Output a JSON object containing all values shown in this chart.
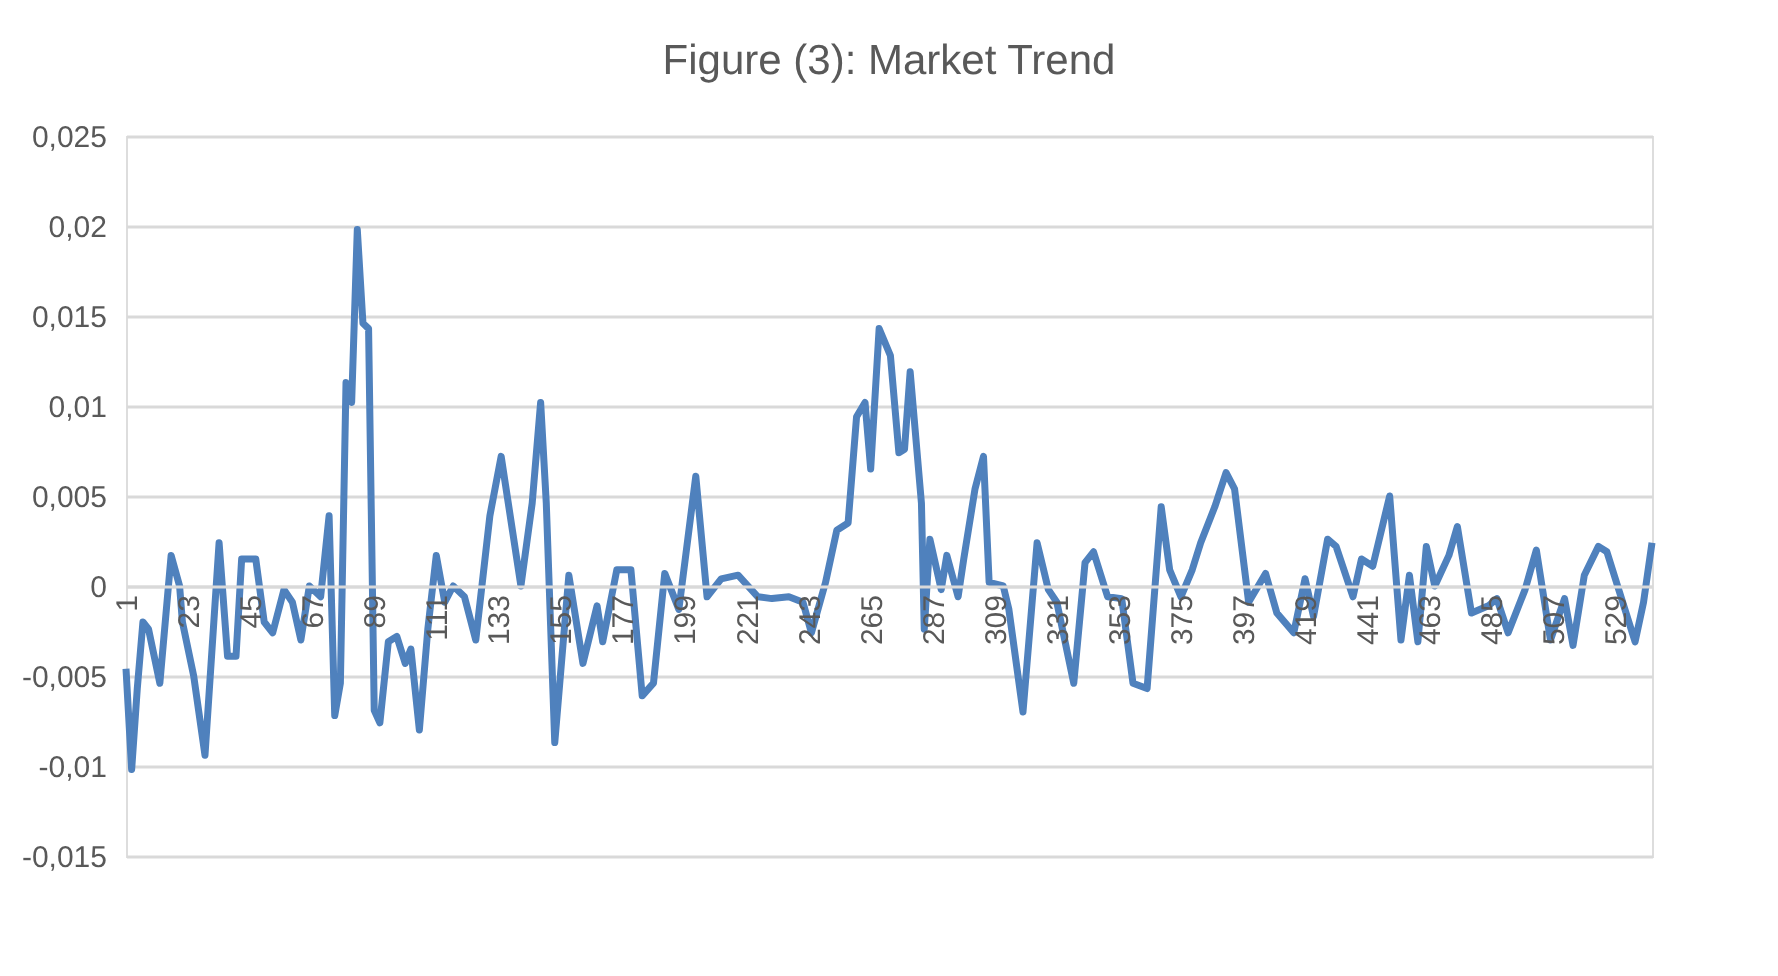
{
  "chart_data": {
    "type": "line",
    "title": "Figure (3): Market Trend",
    "xlim": [
      1,
      542
    ],
    "xticks": [
      1,
      23,
      45,
      67,
      89,
      111,
      133,
      155,
      177,
      199,
      221,
      243,
      265,
      287,
      309,
      331,
      353,
      375,
      397,
      419,
      441,
      463,
      485,
      507,
      529
    ],
    "ylim": [
      -0.015,
      0.025
    ],
    "yticks": [
      {
        "value": -0.015,
        "label": "-0,015"
      },
      {
        "value": -0.01,
        "label": "-0,01"
      },
      {
        "value": -0.005,
        "label": "-0,005"
      },
      0,
      {
        "value": 0.005,
        "label": "0,005"
      },
      {
        "value": 0.01,
        "label": "0,01"
      },
      {
        "value": 0.015,
        "label": "0,015"
      },
      {
        "value": 0.02,
        "label": "0,02"
      },
      {
        "value": 0.025,
        "label": "0,025"
      }
    ],
    "grid": "y",
    "legend": false,
    "marker": "none",
    "line_style": "solid",
    "series": [
      {
        "color": "#4f81bd",
        "x": [
          1,
          3,
          5,
          7,
          9,
          13,
          17,
          20,
          21,
          25,
          29,
          34,
          37,
          40,
          42,
          47,
          50,
          53,
          57,
          60,
          63,
          66,
          70,
          73,
          75,
          77,
          79,
          81,
          83,
          85,
          87,
          89,
          91,
          94,
          97,
          100,
          102,
          105,
          108,
          111,
          114,
          117,
          121,
          125,
          130,
          134,
          141,
          145,
          148,
          150,
          153,
          158,
          163,
          168,
          170,
          175,
          180,
          184,
          188,
          192,
          197,
          203,
          207,
          212,
          218,
          225,
          230,
          236,
          241,
          244,
          249,
          253,
          257,
          260,
          263,
          265,
          268,
          272,
          275,
          277,
          279,
          283,
          284,
          286,
          290,
          292,
          296,
          298,
          302,
          305,
          307,
          312,
          314,
          319,
          324,
          328,
          331,
          337,
          341,
          344,
          349,
          354,
          358,
          363,
          368,
          371,
          375,
          379,
          382,
          387,
          391,
          394,
          399,
          405,
          409,
          415,
          419,
          422,
          427,
          430,
          436,
          439,
          443,
          449,
          453,
          456,
          459,
          462,
          465,
          470,
          473,
          478,
          484,
          487,
          491,
          497,
          501,
          506,
          511,
          514,
          518,
          523,
          526,
          531,
          536,
          539,
          542
        ],
        "values": [
          -0.0046,
          -0.0102,
          -0.0057,
          -0.002,
          -0.0024,
          -0.0054,
          0.0017,
          0,
          -0.002,
          -0.005,
          -0.0094,
          0.0024,
          -0.0039,
          -0.0039,
          0.0015,
          0.0015,
          -0.002,
          -0.0026,
          -0.0002,
          -0.0009,
          -0.003,
          0,
          -0.0006,
          0.0039,
          -0.0072,
          -0.0054,
          0.0113,
          0.0102,
          0.0198,
          0.0146,
          0.0143,
          -0.0069,
          -0.0076,
          -0.0031,
          -0.0028,
          -0.0043,
          -0.0035,
          -0.008,
          -0.0024,
          0.0017,
          -0.0009,
          0,
          -0.0006,
          -0.003,
          0.0039,
          0.0072,
          0,
          0.0046,
          0.0102,
          0.0046,
          -0.0087,
          0.0006,
          -0.0043,
          -0.0011,
          -0.0031,
          0.0009,
          0.0009,
          -0.0061,
          -0.0054,
          0.0007,
          -0.0013,
          0.0061,
          -0.0006,
          0.0004,
          0.0006,
          -0.0006,
          -0.0007,
          -0.0006,
          -0.0009,
          -0.0026,
          0.0002,
          0.0031,
          0.0035,
          0.0094,
          0.0102,
          0.0065,
          0.0143,
          0.0128,
          0.0074,
          0.0076,
          0.0119,
          0.0046,
          -0.0024,
          0.0026,
          -0.0002,
          0.0017,
          -0.0006,
          0.0015,
          0.0054,
          0.0072,
          0.0002,
          0,
          -0.0013,
          -0.007,
          0.0024,
          -0.0002,
          -0.0009,
          -0.0054,
          0.0013,
          0.0019,
          -0.0006,
          -0.0007,
          -0.0054,
          -0.0057,
          0.0044,
          0.0009,
          -0.0006,
          0.0009,
          0.0024,
          0.0044,
          0.0063,
          0.0054,
          -0.0009,
          0.0007,
          -0.0015,
          -0.0026,
          0.0004,
          -0.0017,
          0.0026,
          0.0022,
          -0.0006,
          0.0015,
          0.0011,
          0.005,
          -0.003,
          0.0006,
          -0.0031,
          0.0022,
          0,
          0.0017,
          0.0033,
          -0.0015,
          -0.0011,
          -0.0007,
          -0.0026,
          -0.0002,
          0.002,
          -0.003,
          -0.0007,
          -0.0033,
          0.0006,
          0.0022,
          0.0019,
          -0.0006,
          -0.0031,
          -0.0009,
          0.0024
        ]
      }
    ]
  }
}
